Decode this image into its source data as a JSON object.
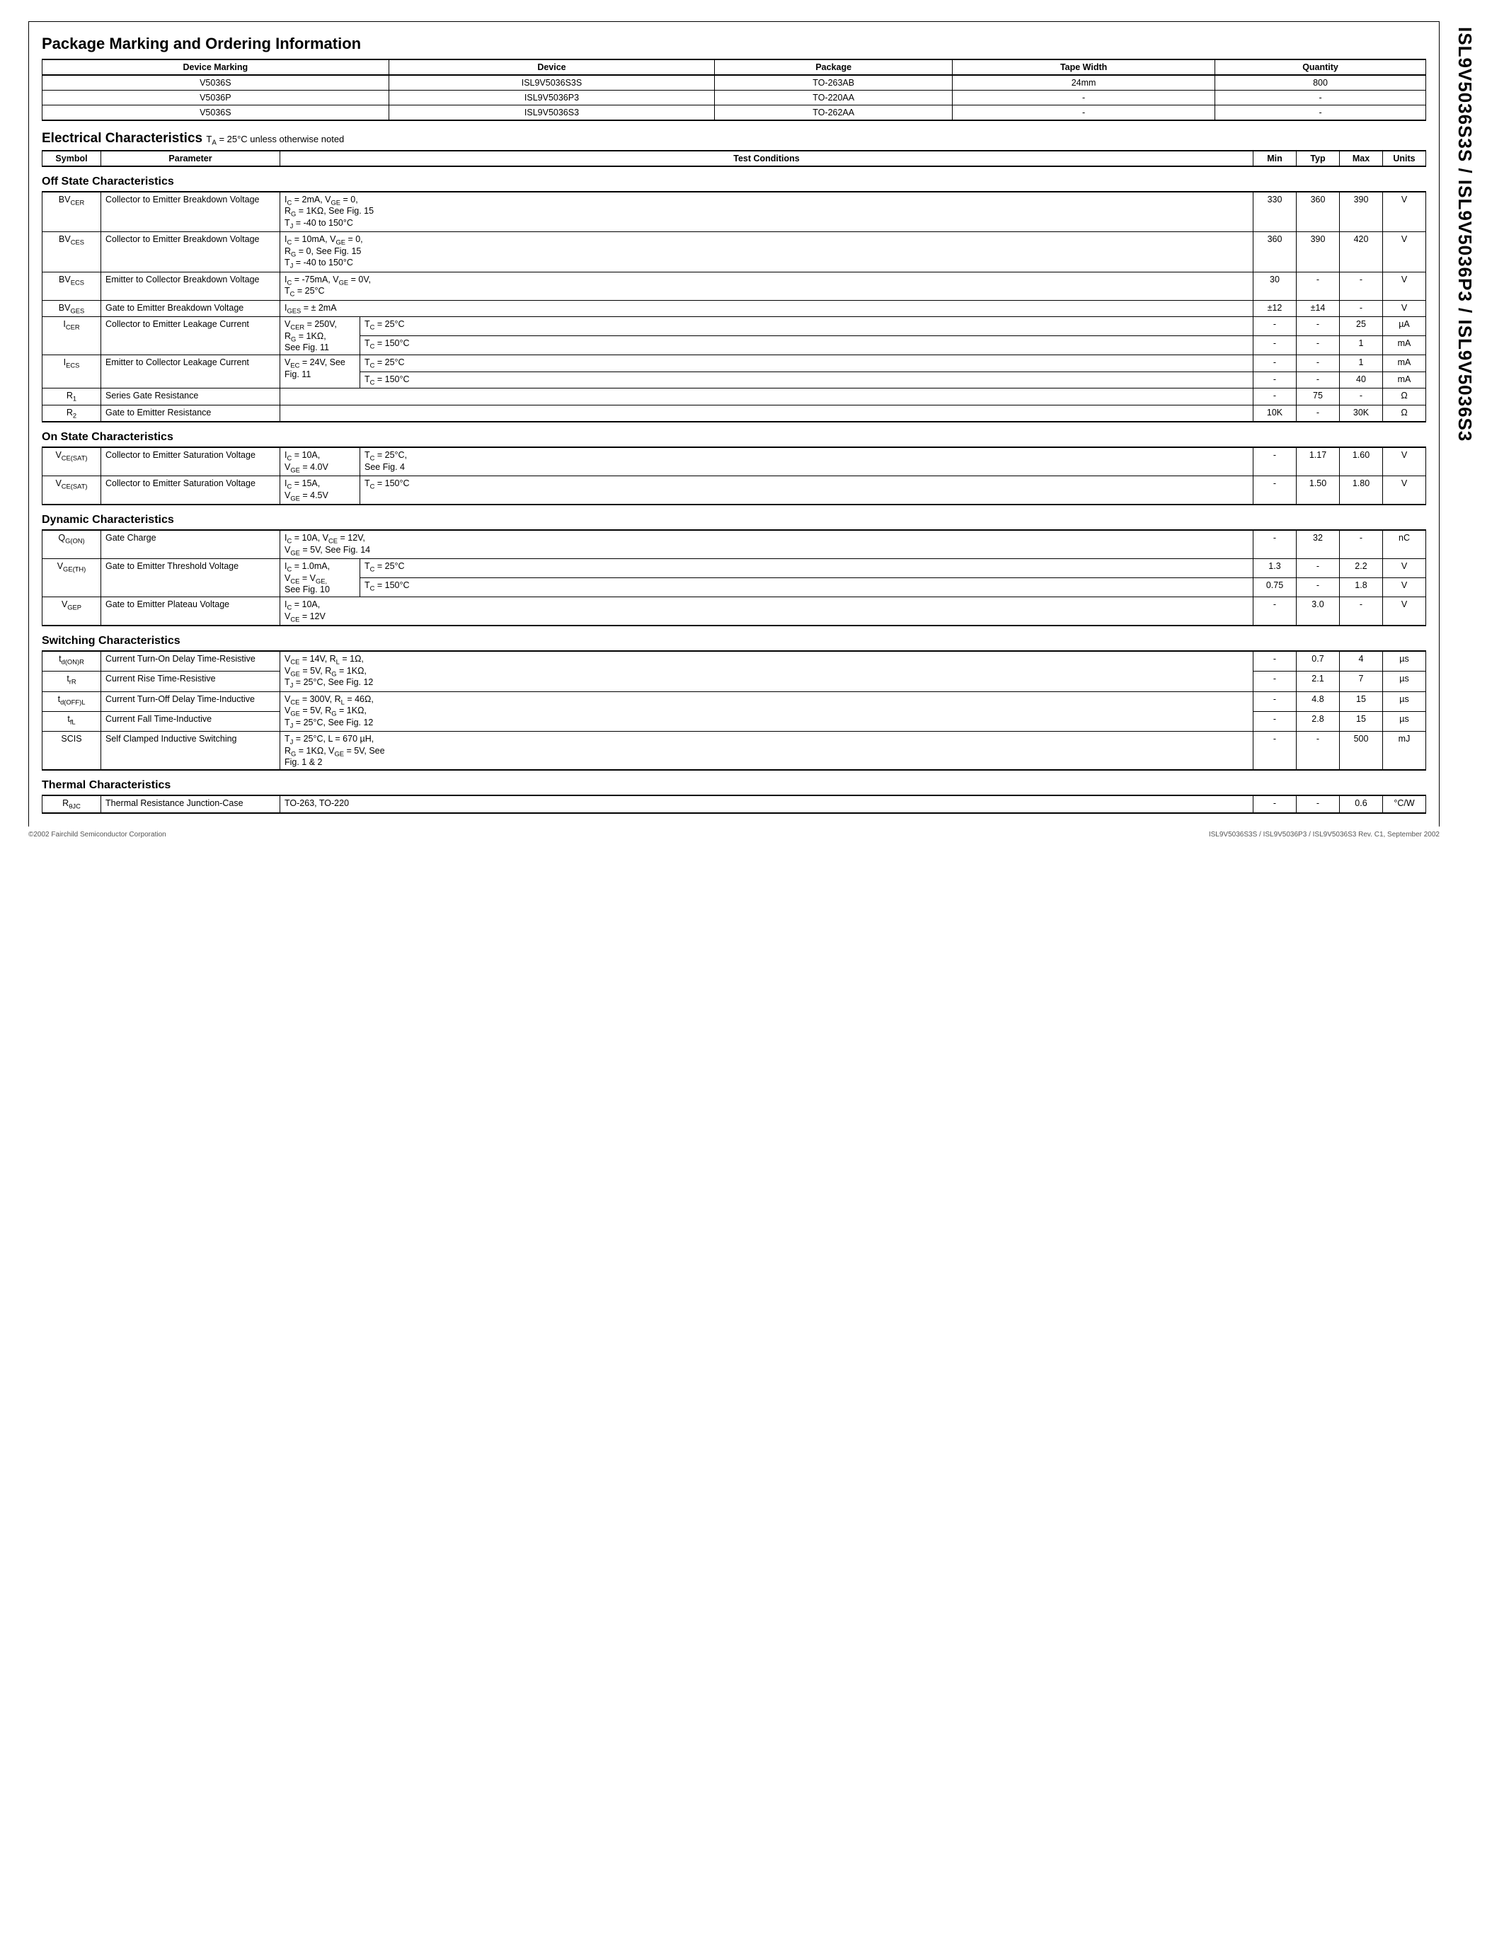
{
  "side_label": "ISL9V5036S3S / ISL9V5036P3 / ISL9V5036S3",
  "pkg_section": {
    "title": "Package Marking and Ordering Information",
    "headers": [
      "Device Marking",
      "Device",
      "Package",
      "Tape Width",
      "Quantity"
    ],
    "rows": [
      [
        "V5036S",
        "ISL9V5036S3S",
        "TO-263AB",
        "24mm",
        "800"
      ],
      [
        "V5036P",
        "ISL9V5036P3",
        "TO-220AA",
        "-",
        "-"
      ],
      [
        "V5036S",
        "ISL9V5036S3",
        "TO-262AA",
        "-",
        "-"
      ]
    ]
  },
  "elec_section": {
    "title": "Electrical Characteristics",
    "note": "T<sub>A</sub> = 25°C unless otherwise noted",
    "headers": [
      "Symbol",
      "Parameter",
      "Test Conditions",
      "Min",
      "Typ",
      "Max",
      "Units"
    ]
  },
  "off_state": {
    "title": "Off State Characteristics",
    "rows": [
      {
        "sym": "BV<sub>CER</sub>",
        "par": "Collector to Emitter Breakdown Voltage",
        "tc": "I<sub>C</sub> = 2mA, V<sub>GE</sub> = 0,<br>R<sub>G</sub> = 1KΩ,  See Fig. 15<br>T<sub>J</sub> = -40 to 150°C",
        "min": "330",
        "typ": "360",
        "max": "390",
        "u": "V",
        "span": 2
      },
      {
        "sym": "BV<sub>CES</sub>",
        "par": "Collector to Emitter Breakdown Voltage",
        "tc": "I<sub>C</sub> = 10mA, V<sub>GE</sub> = 0,<br>R<sub>G</sub> = 0,  See Fig. 15<br>T<sub>J</sub> = -40 to 150°C",
        "min": "360",
        "typ": "390",
        "max": "420",
        "u": "V",
        "span": 2
      },
      {
        "sym": "BV<sub>ECS</sub>",
        "par": "Emitter to Collector Breakdown Voltage",
        "tc": "I<sub>C</sub> = -75mA, V<sub>GE</sub> = 0V,<br>T<sub>C</sub> = 25°C",
        "min": "30",
        "typ": "-",
        "max": "-",
        "u": "V",
        "span": 2
      },
      {
        "sym": "BV<sub>GES</sub>",
        "par": "Gate to Emitter Breakdown Voltage",
        "tc": "I<sub>GES</sub> = ± 2mA",
        "min": "±12",
        "typ": "±14",
        "max": "-",
        "u": "V",
        "span": 2
      }
    ],
    "split_rows": [
      {
        "sym": "I<sub>CER</sub>",
        "par": "Collector to Emitter Leakage Current",
        "tc1": "V<sub>CER</sub> = 250V,<br>R<sub>G</sub> = 1KΩ,<br>See Fig. 11",
        "sub": [
          {
            "tc2": "T<sub>C</sub> = 25°C",
            "min": "-",
            "typ": "-",
            "max": "25",
            "u": "µA"
          },
          {
            "tc2": "T<sub>C</sub> = 150°C",
            "min": "-",
            "typ": "-",
            "max": "1",
            "u": "mA"
          }
        ]
      },
      {
        "sym": "I<sub>ECS</sub>",
        "par": "Emitter to Collector Leakage Current",
        "tc1": "V<sub>EC</sub> = 24V, See<br>Fig. 11",
        "sub": [
          {
            "tc2": "T<sub>C</sub> = 25°C",
            "min": "-",
            "typ": "-",
            "max": "1",
            "u": "mA"
          },
          {
            "tc2": "T<sub>C</sub> = 150°C",
            "min": "-",
            "typ": "-",
            "max": "40",
            "u": "mA"
          }
        ]
      }
    ],
    "simple_rows": [
      {
        "sym": "R<sub>1</sub>",
        "par": "Series Gate Resistance",
        "tc": "",
        "min": "-",
        "typ": "75",
        "max": "-",
        "u": "Ω"
      },
      {
        "sym": "R<sub>2</sub>",
        "par": "Gate to Emitter Resistance",
        "tc": "",
        "min": "10K",
        "typ": "-",
        "max": "30K",
        "u": "Ω"
      }
    ]
  },
  "on_state": {
    "title": "On State Characteristics",
    "rows": [
      {
        "sym": "V<sub>CE(SAT)</sub>",
        "par": "Collector to Emitter Saturation Voltage",
        "tc1": "I<sub>C</sub> = 10A,<br>V<sub>GE</sub> = 4.0V",
        "tc2": "T<sub>C</sub> = 25°C,<br>See Fig. 4",
        "min": "-",
        "typ": "1.17",
        "max": "1.60",
        "u": "V"
      },
      {
        "sym": "V<sub>CE(SAT)</sub>",
        "par": "Collector to Emitter Saturation Voltage",
        "tc1": "I<sub>C</sub> = 15A,<br>V<sub>GE</sub> = 4.5V",
        "tc2": "T<sub>C</sub> = 150°C",
        "min": "-",
        "typ": "1.50",
        "max": "1.80",
        "u": "V"
      }
    ]
  },
  "dynamic": {
    "title": "Dynamic Characteristics",
    "rows_full": [
      {
        "sym": "Q<sub>G(ON)</sub>",
        "par": "Gate Charge",
        "tc": "I<sub>C</sub> = 10A, V<sub>CE</sub> = 12V,<br>V<sub>GE</sub> = 5V, See Fig. 14",
        "min": "-",
        "typ": "32",
        "max": "-",
        "u": "nC"
      }
    ],
    "rows_split": [
      {
        "sym": "V<sub>GE(TH)</sub>",
        "par": "Gate to Emitter Threshold Voltage",
        "tc1": "I<sub>C</sub> = 1.0mA,<br>V<sub>CE</sub> = V<sub>GE,</sub><br>See Fig. 10",
        "sub": [
          {
            "tc2": "T<sub>C</sub> = 25°C",
            "min": "1.3",
            "typ": "-",
            "max": "2.2",
            "u": "V"
          },
          {
            "tc2": "T<sub>C</sub> = 150°C",
            "min": "0.75",
            "typ": "-",
            "max": "1.8",
            "u": "V"
          }
        ]
      }
    ],
    "rows_full2": [
      {
        "sym": "V<sub>GEP</sub>",
        "par": "Gate to Emitter Plateau Voltage",
        "tc": "I<sub>C</sub> = 10A,<br>V<sub>CE</sub> = 12V",
        "min": "-",
        "typ": "3.0",
        "max": "-",
        "u": "V"
      }
    ]
  },
  "switching": {
    "title": "Switching Characteristics",
    "group1_tc": "V<sub>CE</sub> = 14V, R<sub>L</sub> = 1Ω,<br>V<sub>GE</sub> = 5V, R<sub>G</sub> = 1KΩ,<br>T<sub>J</sub> = 25°C, See Fig. 12",
    "group1": [
      {
        "sym": "t<sub>d(ON)R</sub>",
        "par": "Current Turn-On Delay Time-Resistive",
        "min": "-",
        "typ": "0.7",
        "max": "4",
        "u": "µs"
      },
      {
        "sym": "t<sub>rR</sub>",
        "par": "Current Rise Time-Resistive",
        "min": "-",
        "typ": "2.1",
        "max": "7",
        "u": "µs"
      }
    ],
    "group2_tc": "V<sub>CE</sub> = 300V, R<sub>L</sub> = 46Ω,<br>V<sub>GE</sub> = 5V, R<sub>G</sub> = 1KΩ,<br>T<sub>J</sub> = 25°C, See Fig. 12",
    "group2": [
      {
        "sym": "t<sub>d(OFF)L</sub>",
        "par": "Current Turn-Off Delay Time-Inductive",
        "min": "-",
        "typ": "4.8",
        "max": "15",
        "u": "µs"
      },
      {
        "sym": "t<sub>fL</sub>",
        "par": "Current Fall Time-Inductive",
        "min": "-",
        "typ": "2.8",
        "max": "15",
        "u": "µs"
      }
    ],
    "scis": {
      "sym": "SCIS",
      "par": "Self Clamped Inductive Switching",
      "tc": "T<sub>J</sub> = 25°C, L = 670 µH,<br>R<sub>G</sub> = 1KΩ,  V<sub>GE</sub> = 5V, See<br>Fig. 1 & 2",
      "min": "-",
      "typ": "-",
      "max": "500",
      "u": "mJ"
    }
  },
  "thermal": {
    "title": "Thermal Characteristics",
    "row": {
      "sym": "R<sub>θJC</sub>",
      "par": "Thermal Resistance Junction-Case",
      "tc": "TO-263, TO-220",
      "min": "-",
      "typ": "-",
      "max": "0.6",
      "u": "°C/W"
    }
  },
  "footer": {
    "left": "©2002 Fairchild Semiconductor Corporation",
    "right": "ISL9V5036S3S / ISL9V5036P3 / ISL9V5036S3 Rev. C1, September  2002"
  }
}
